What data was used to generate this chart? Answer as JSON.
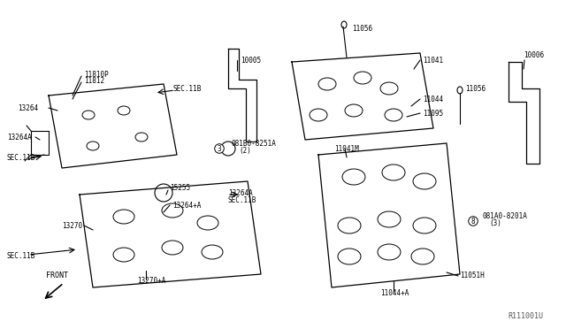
{
  "title": "",
  "bg_color": "#ffffff",
  "fig_width": 6.4,
  "fig_height": 3.72,
  "dpi": 100,
  "ref_code": "R111001U",
  "parts": {
    "left_upper_cover": {
      "label": "11810P",
      "label2": "11812",
      "part_13264": "13264",
      "part_13264A": "13264A",
      "sec_118_left": "SEC.11B",
      "sec_118_upper": "SEC.11B"
    },
    "center_bracket": {
      "label": "10005",
      "bolt_circle": "081B0-8251A\n(2)"
    },
    "right_upper": {
      "label_11041": "11041",
      "label_11044": "11044",
      "label_11095": "11095",
      "label_11041M": "11041M",
      "label_11056_top": "11056",
      "label_11056_right": "11056",
      "label_10006": "10006",
      "label_11044A": "11044+A"
    },
    "lower_left": {
      "label_15255": "15255",
      "label_13264pA": "13264+A",
      "label_13264A": "13264A",
      "label_13270": "13270",
      "label_13270pA": "13270+A",
      "sec_118a": "SEC.11B",
      "sec_118b": "SEC.11B",
      "front_arrow": "FRONT"
    },
    "lower_right": {
      "bolt_circle": "081A0-8201A\n(3)",
      "label_11051H": "11051H",
      "label_11044A": "11044+A"
    }
  },
  "line_color": "#000000",
  "text_color": "#000000",
  "font_size": 5.5
}
